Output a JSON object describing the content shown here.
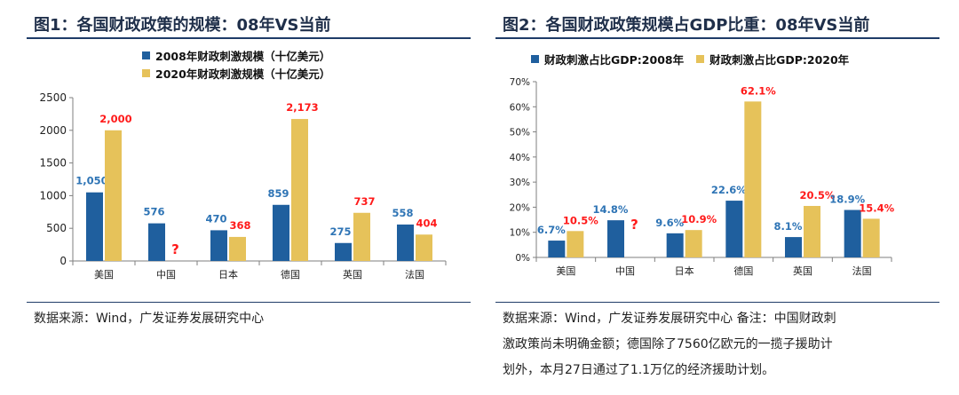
{
  "colors": {
    "series2008": "#1f5f9e",
    "series2020": "#e6c25a",
    "label2008": "#2e74b5",
    "label2020": "#ff1a1a",
    "title": "#1f2f4a",
    "rule": "#1f3c68"
  },
  "chart_data": [
    {
      "type": "bar",
      "title": "图1：各国财政政策的规模：08年VS当前",
      "categories": [
        "美国",
        "中国",
        "日本",
        "德国",
        "英国",
        "法国"
      ],
      "series": [
        {
          "name": "2008年财政刺激规模（十亿美元）",
          "values": [
            1050,
            576,
            470,
            859,
            275,
            558
          ],
          "labels": [
            "1,050",
            "576",
            "470",
            "859",
            "275",
            "558"
          ]
        },
        {
          "name": "2020年财政刺激规模（十亿美元）",
          "values": [
            2000,
            null,
            368,
            2173,
            737,
            404
          ],
          "labels": [
            "2,000",
            "?",
            "368",
            "2,173",
            "737",
            "404"
          ]
        }
      ],
      "ylim": [
        0,
        2500
      ],
      "yticks": [
        0,
        500,
        1000,
        1500,
        2000,
        2500
      ],
      "ytick_labels": [
        "0",
        "500",
        "1000",
        "1500",
        "2000",
        "2500"
      ],
      "legend": "top-center",
      "grid": false,
      "source": "数据来源：Wind，广发证券发展研究中心"
    },
    {
      "type": "bar",
      "title": "图2：各国财政政策规模占GDP比重：08年VS当前",
      "categories": [
        "美国",
        "中国",
        "日本",
        "德国",
        "英国",
        "法国"
      ],
      "series": [
        {
          "name": "财政刺激占比GDP:2008年",
          "values": [
            6.7,
            14.8,
            9.6,
            22.6,
            8.1,
            18.9
          ],
          "labels": [
            "6.7%",
            "14.8%",
            "9.6%",
            "22.6%",
            "8.1%",
            "18.9%"
          ]
        },
        {
          "name": "财政刺激占比GDP:2020年",
          "values": [
            10.5,
            null,
            10.9,
            62.1,
            20.5,
            15.4
          ],
          "labels": [
            "10.5%",
            "?",
            "10.9%",
            "62.1%",
            "20.5%",
            "15.4%"
          ]
        }
      ],
      "ylim": [
        0,
        70
      ],
      "yticks": [
        0,
        10,
        20,
        30,
        40,
        50,
        60,
        70
      ],
      "ytick_labels": [
        "0%",
        "10%",
        "20%",
        "30%",
        "40%",
        "50%",
        "60%",
        "70%"
      ],
      "legend": "top-center",
      "grid": false,
      "source_lines": [
        "数据来源：Wind，广发证券发展研究中心   备注：中国财政刺",
        "激政策尚未明确金额；德国除了7560亿欧元的一揽子援助计",
        "划外，本月27日通过了1.1万亿的经济援助计划。"
      ]
    }
  ]
}
